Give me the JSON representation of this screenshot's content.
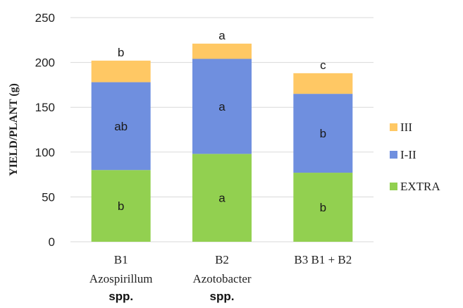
{
  "chart_data": {
    "type": "bar",
    "stacked": true,
    "ylabel": "YIELD/PLANT (g)",
    "ylim": [
      0,
      250
    ],
    "yticks": [
      0,
      50,
      100,
      150,
      200,
      250
    ],
    "grid": true,
    "legend_position": "right",
    "categories": [
      {
        "line1": "B1",
        "line2": "Azospirillum",
        "line3": "spp."
      },
      {
        "line1": "B2",
        "line2": "Azotobacter",
        "line3": "spp."
      },
      {
        "line1": "B3 B1 + B2",
        "line2": "",
        "line3": ""
      }
    ],
    "series": [
      {
        "name": "EXTRA",
        "color": "#92d050",
        "values": [
          80,
          98,
          77
        ],
        "labels": [
          "b",
          "a",
          "b"
        ]
      },
      {
        "name": "I-II",
        "color": "#6f8fdf",
        "values": [
          98,
          106,
          88
        ],
        "labels": [
          "ab",
          "a",
          "b"
        ]
      },
      {
        "name": "III",
        "color": "#ffc864",
        "values": [
          24,
          17,
          23
        ],
        "labels": [
          "",
          "",
          ""
        ]
      }
    ],
    "total_labels": [
      "b",
      "a",
      "c"
    ],
    "legend_order": [
      "III",
      "I-II",
      "EXTRA"
    ]
  }
}
